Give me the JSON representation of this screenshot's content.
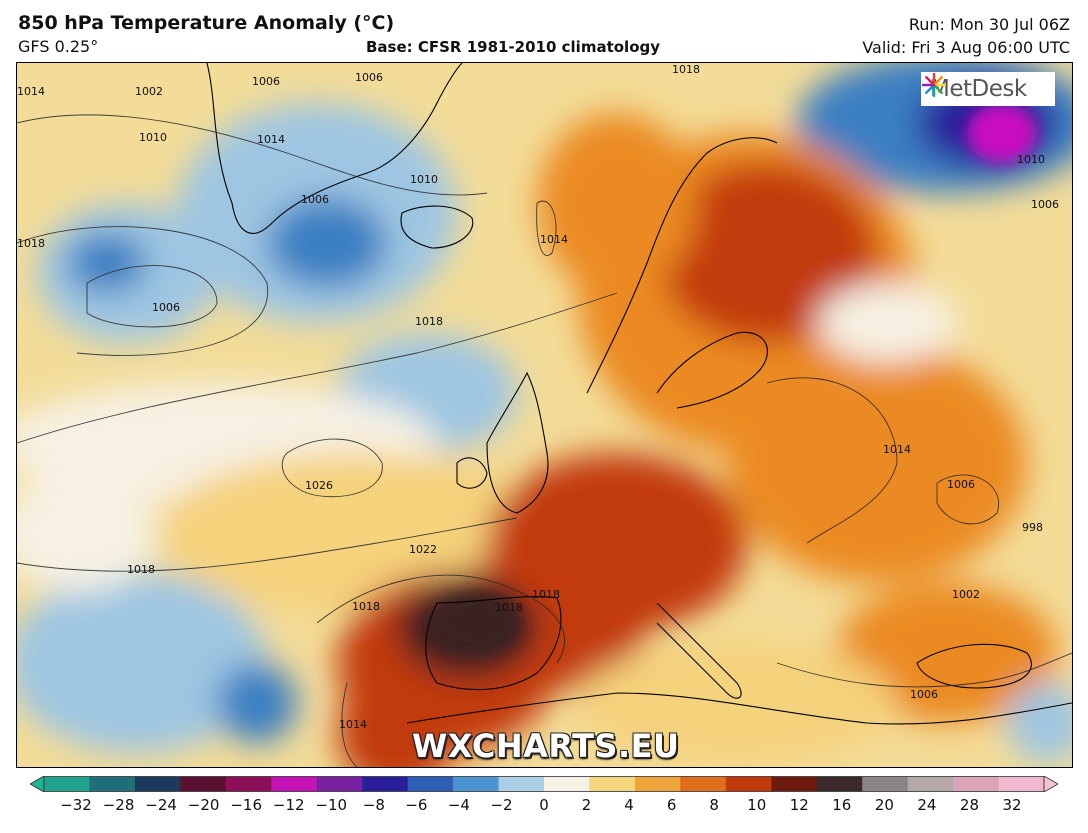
{
  "header": {
    "title": "850 hPa Temperature Anomaly (°C)",
    "model": "GFS 0.25°",
    "base": "Base: CFSR 1981-2010 climatology",
    "run": "Run: Mon 30 Jul 06Z",
    "valid": "Valid: Fri 3 Aug 06:00 UTC"
  },
  "logo": {
    "text": "MetDesk",
    "icon": "metdesk-starburst-icon"
  },
  "watermark": "WXCHARTS.EU",
  "map": {
    "variable": "850 hPa temperature anomaly",
    "isobar_labels": [
      "1002",
      "1006",
      "1006",
      "1006",
      "1010",
      "1014",
      "1010",
      "1014",
      "1014",
      "1018",
      "1006",
      "1018",
      "1018",
      "1026",
      "1022",
      "1018",
      "1018",
      "1018",
      "1014",
      "1014",
      "1006",
      "998",
      "1002",
      "1006",
      "1010",
      "1006",
      "1018"
    ],
    "colors": {
      "strong_warm": "#3a2020",
      "warm": "#c23a0c",
      "moderate": "#eb8a23",
      "mild": "#f5d27c",
      "neutral": "#f6f1e3",
      "cool": "#9ec6e2",
      "cold": "#3b7fc2",
      "very_cold": "#2a1e9a",
      "extreme_cold": "#c90fc0"
    }
  },
  "colorbar": {
    "ticks": [
      "−32",
      "−28",
      "−24",
      "−20",
      "−16",
      "−12",
      "−10",
      "−8",
      "−6",
      "−4",
      "−2",
      "0",
      "2",
      "4",
      "6",
      "8",
      "10",
      "12",
      "16",
      "20",
      "24",
      "28",
      "32"
    ],
    "colors": [
      "#1fa58d",
      "#1f6e7a",
      "#1d3a5e",
      "#5a1030",
      "#8e0e58",
      "#c412b6",
      "#7b1fa2",
      "#2a1e9a",
      "#2f5db8",
      "#4a92d0",
      "#a9cfe6",
      "#f4f1e4",
      "#f3d57d",
      "#eda43a",
      "#e06d1c",
      "#c23a0c",
      "#6e1a0e",
      "#3a2a2a",
      "#8a8585",
      "#b7a8a8",
      "#d9a3b8",
      "#efb8cf"
    ]
  }
}
